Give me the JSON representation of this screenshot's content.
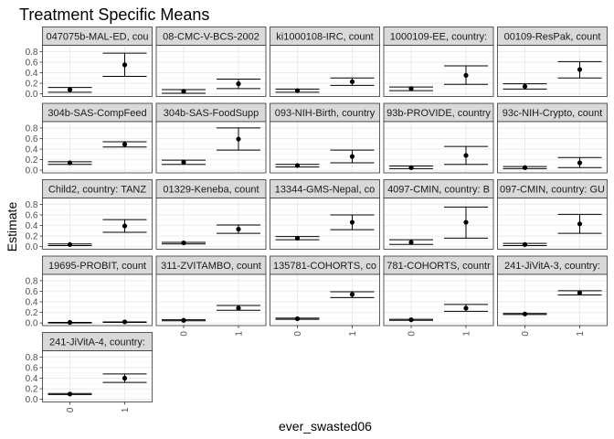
{
  "chart_data": {
    "type": "scatter",
    "title": "Treatment Specific Means",
    "xlabel": "ever_swasted06",
    "ylabel": "Estimate",
    "categories": [
      "0",
      "1"
    ],
    "ylim": [
      -0.05,
      0.92
    ],
    "yticks": [
      "0.0",
      "0.2",
      "0.4",
      "0.6",
      "0.8"
    ],
    "grid": true,
    "panels": [
      {
        "label": "047075b-MAL-ED, cou",
        "points": [
          {
            "x": "0",
            "y": 0.08,
            "lo": 0.03,
            "hi": 0.12
          },
          {
            "x": "1",
            "y": 0.55,
            "lo": 0.33,
            "hi": 0.77
          }
        ]
      },
      {
        "label": "08-CMC-V-BCS-2002",
        "points": [
          {
            "x": "0",
            "y": 0.05,
            "lo": 0.01,
            "hi": 0.08
          },
          {
            "x": "1",
            "y": 0.19,
            "lo": 0.1,
            "hi": 0.28
          }
        ]
      },
      {
        "label": "ki1000108-IRC, count",
        "points": [
          {
            "x": "0",
            "y": 0.06,
            "lo": 0.03,
            "hi": 0.09
          },
          {
            "x": "1",
            "y": 0.23,
            "lo": 0.16,
            "hi": 0.3
          }
        ]
      },
      {
        "label": "1000109-EE, country:",
        "points": [
          {
            "x": "0",
            "y": 0.1,
            "lo": 0.06,
            "hi": 0.13
          },
          {
            "x": "1",
            "y": 0.35,
            "lo": 0.18,
            "hi": 0.53
          }
        ]
      },
      {
        "label": "00109-ResPak, count",
        "points": [
          {
            "x": "0",
            "y": 0.14,
            "lo": 0.09,
            "hi": 0.19
          },
          {
            "x": "1",
            "y": 0.46,
            "lo": 0.3,
            "hi": 0.61
          }
        ]
      },
      {
        "label": "304b-SAS-CompFeed",
        "points": [
          {
            "x": "0",
            "y": 0.14,
            "lo": 0.11,
            "hi": 0.16
          },
          {
            "x": "1",
            "y": 0.49,
            "lo": 0.44,
            "hi": 0.54
          }
        ]
      },
      {
        "label": "304b-SAS-FoodSupp",
        "points": [
          {
            "x": "0",
            "y": 0.15,
            "lo": 0.11,
            "hi": 0.19
          },
          {
            "x": "1",
            "y": 0.59,
            "lo": 0.38,
            "hi": 0.8
          }
        ]
      },
      {
        "label": "093-NIH-Birth, country",
        "points": [
          {
            "x": "0",
            "y": 0.09,
            "lo": 0.06,
            "hi": 0.11
          },
          {
            "x": "1",
            "y": 0.26,
            "lo": 0.14,
            "hi": 0.38
          }
        ]
      },
      {
        "label": "93b-PROVIDE, country",
        "points": [
          {
            "x": "0",
            "y": 0.05,
            "lo": 0.03,
            "hi": 0.08
          },
          {
            "x": "1",
            "y": 0.28,
            "lo": 0.11,
            "hi": 0.45
          }
        ]
      },
      {
        "label": "93c-NIH-Crypto, count",
        "points": [
          {
            "x": "0",
            "y": 0.05,
            "lo": 0.03,
            "hi": 0.07
          },
          {
            "x": "1",
            "y": 0.14,
            "lo": 0.05,
            "hi": 0.24
          }
        ]
      },
      {
        "label": "Child2, country: TANZ",
        "points": [
          {
            "x": "0",
            "y": 0.04,
            "lo": 0.02,
            "hi": 0.05
          },
          {
            "x": "1",
            "y": 0.39,
            "lo": 0.27,
            "hi": 0.51
          }
        ]
      },
      {
        "label": "01329-Keneba, count",
        "points": [
          {
            "x": "0",
            "y": 0.07,
            "lo": 0.05,
            "hi": 0.08
          },
          {
            "x": "1",
            "y": 0.33,
            "lo": 0.25,
            "hi": 0.41
          }
        ]
      },
      {
        "label": "13344-GMS-Nepal, co",
        "points": [
          {
            "x": "0",
            "y": 0.16,
            "lo": 0.13,
            "hi": 0.19
          },
          {
            "x": "1",
            "y": 0.46,
            "lo": 0.32,
            "hi": 0.6
          }
        ]
      },
      {
        "label": "4097-CMIN, country: B",
        "points": [
          {
            "x": "0",
            "y": 0.08,
            "lo": 0.04,
            "hi": 0.13
          },
          {
            "x": "1",
            "y": 0.46,
            "lo": 0.16,
            "hi": 0.75
          }
        ]
      },
      {
        "label": "097-CMIN, country: GU",
        "points": [
          {
            "x": "0",
            "y": 0.04,
            "lo": 0.02,
            "hi": 0.06
          },
          {
            "x": "1",
            "y": 0.43,
            "lo": 0.25,
            "hi": 0.61
          }
        ]
      },
      {
        "label": "19695-PROBIT, count",
        "points": [
          {
            "x": "0",
            "y": 0.01,
            "lo": 0.0,
            "hi": 0.01
          },
          {
            "x": "1",
            "y": 0.02,
            "lo": 0.01,
            "hi": 0.02
          }
        ]
      },
      {
        "label": "311-ZVITAMBO, count",
        "points": [
          {
            "x": "0",
            "y": 0.05,
            "lo": 0.04,
            "hi": 0.06
          },
          {
            "x": "1",
            "y": 0.28,
            "lo": 0.24,
            "hi": 0.33
          }
        ]
      },
      {
        "label": "135781-COHORTS, co",
        "points": [
          {
            "x": "0",
            "y": 0.08,
            "lo": 0.07,
            "hi": 0.09
          },
          {
            "x": "1",
            "y": 0.54,
            "lo": 0.48,
            "hi": 0.59
          }
        ]
      },
      {
        "label": "781-COHORTS, countr",
        "points": [
          {
            "x": "0",
            "y": 0.06,
            "lo": 0.05,
            "hi": 0.07
          },
          {
            "x": "1",
            "y": 0.28,
            "lo": 0.22,
            "hi": 0.35
          }
        ]
      },
      {
        "label": "241-JiVitA-3, country:",
        "points": [
          {
            "x": "0",
            "y": 0.17,
            "lo": 0.16,
            "hi": 0.18
          },
          {
            "x": "1",
            "y": 0.57,
            "lo": 0.53,
            "hi": 0.61
          }
        ]
      },
      {
        "label": "241-JiVitA-4, country:",
        "points": [
          {
            "x": "0",
            "y": 0.1,
            "lo": 0.09,
            "hi": 0.11
          },
          {
            "x": "1",
            "y": 0.4,
            "lo": 0.32,
            "hi": 0.48
          }
        ]
      }
    ]
  }
}
